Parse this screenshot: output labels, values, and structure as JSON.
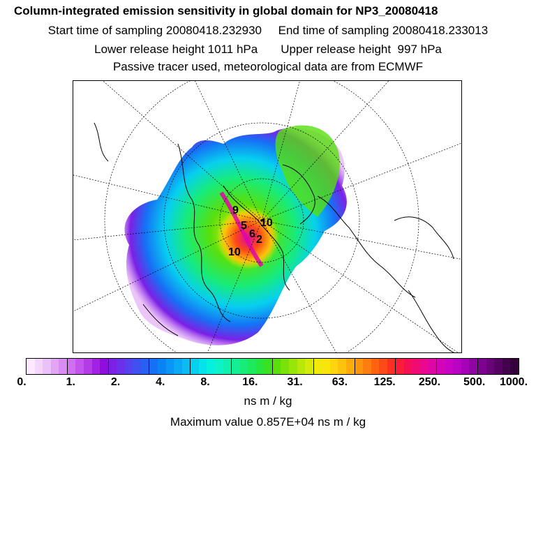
{
  "header": {
    "title": "Column-integrated emission sensitivity in global domain for NP3_20080418",
    "sampling_line": "Start time of sampling 20080418.232930     End time of sampling 20080418.233013",
    "release_line": "Lower release height 1011 hPa       Upper release height  997 hPa",
    "tracer_line": "Passive tracer used, meteorological data are from ECMWF"
  },
  "map": {
    "projection": "polar stereographic (north)",
    "release_labels": [
      "9",
      "5",
      "10",
      "6",
      "2",
      "10"
    ]
  },
  "colorbar": {
    "tick_labels": [
      "0.",
      "1.",
      "2.",
      "4.",
      "8.",
      "16.",
      "31.",
      "63.",
      "125.",
      "250.",
      "500.",
      "1000."
    ],
    "colors": [
      "#fbeafe",
      "#f4d6fb",
      "#ecc0f8",
      "#e2a6f5",
      "#d98cf3",
      "#cf70f0",
      "#c454ec",
      "#b53be7",
      "#a321e2",
      "#8f0edd",
      "#7c20e6",
      "#6a30ea",
      "#5641ee",
      "#4150f2",
      "#2a5ff4",
      "#1670f5",
      "#0a83f5",
      "#0a96f5",
      "#0aa9f4",
      "#0abcf2",
      "#06d0ef",
      "#04e3ea",
      "#06f0e0",
      "#0cf2c9",
      "#10f1b0",
      "#14ef95",
      "#18ec78",
      "#1ee85b",
      "#28e53e",
      "#3ae122",
      "#58e00d",
      "#78e20a",
      "#98e50a",
      "#b8e80a",
      "#d6ea0a",
      "#f0ea0a",
      "#fae40c",
      "#fdd50c",
      "#fdc20c",
      "#fdac0c",
      "#fd950c",
      "#fd7e0e",
      "#fd6410",
      "#fd4a16",
      "#fd2f22",
      "#fb1b3a",
      "#f70f56",
      "#f10a72",
      "#e9088e",
      "#df06a6",
      "#d404b8",
      "#c803c4",
      "#b803c4",
      "#a603b8",
      "#9203a6",
      "#7e0290",
      "#6a027a",
      "#560262",
      "#43024c",
      "#320238"
    ],
    "units": "ns m / kg"
  },
  "max_value_line": "Maximum value  0.857E+04 ns m / kg"
}
